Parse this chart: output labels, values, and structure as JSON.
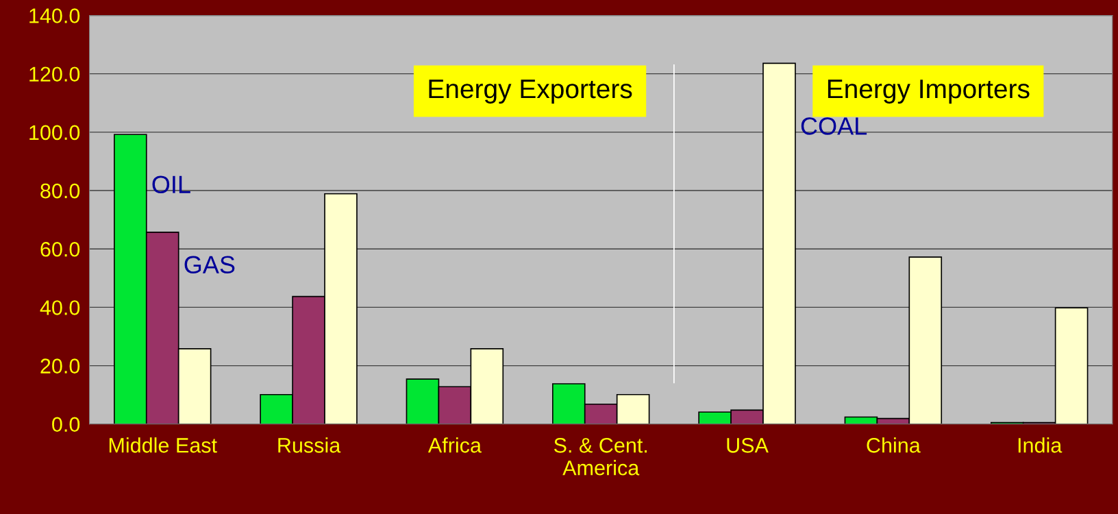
{
  "chart_data": {
    "type": "bar",
    "categories": [
      "Middle East",
      "Russia",
      "Africa",
      "S. & Cent. America",
      "USA",
      "China",
      "India"
    ],
    "series": [
      {
        "name": "OIL",
        "color": "#00e633",
        "values": [
          99.2,
          10.1,
          15.4,
          13.8,
          4.1,
          2.4,
          0.5
        ]
      },
      {
        "name": "GAS",
        "color": "#993366",
        "values": [
          65.7,
          43.7,
          12.8,
          6.8,
          4.8,
          1.9,
          0.5
        ]
      },
      {
        "name": "COAL",
        "color": "#ffffcc",
        "values": [
          25.8,
          78.9,
          25.8,
          10.1,
          123.6,
          57.2,
          39.8
        ]
      }
    ],
    "ylim": [
      0,
      140
    ],
    "yticks": [
      {
        "value": 0,
        "label": "0.0"
      },
      {
        "value": 20,
        "label": "20.0"
      },
      {
        "value": 40,
        "label": "40.0"
      },
      {
        "value": 60,
        "label": "60.0"
      },
      {
        "value": 80,
        "label": "80.0"
      },
      {
        "value": 100,
        "label": "100.0"
      },
      {
        "value": 120,
        "label": "120.0"
      },
      {
        "value": 140,
        "label": "140.0"
      }
    ],
    "grid": "y",
    "legend": false,
    "annotations": [
      "Energy Exporters",
      "Energy Importers"
    ]
  }
}
